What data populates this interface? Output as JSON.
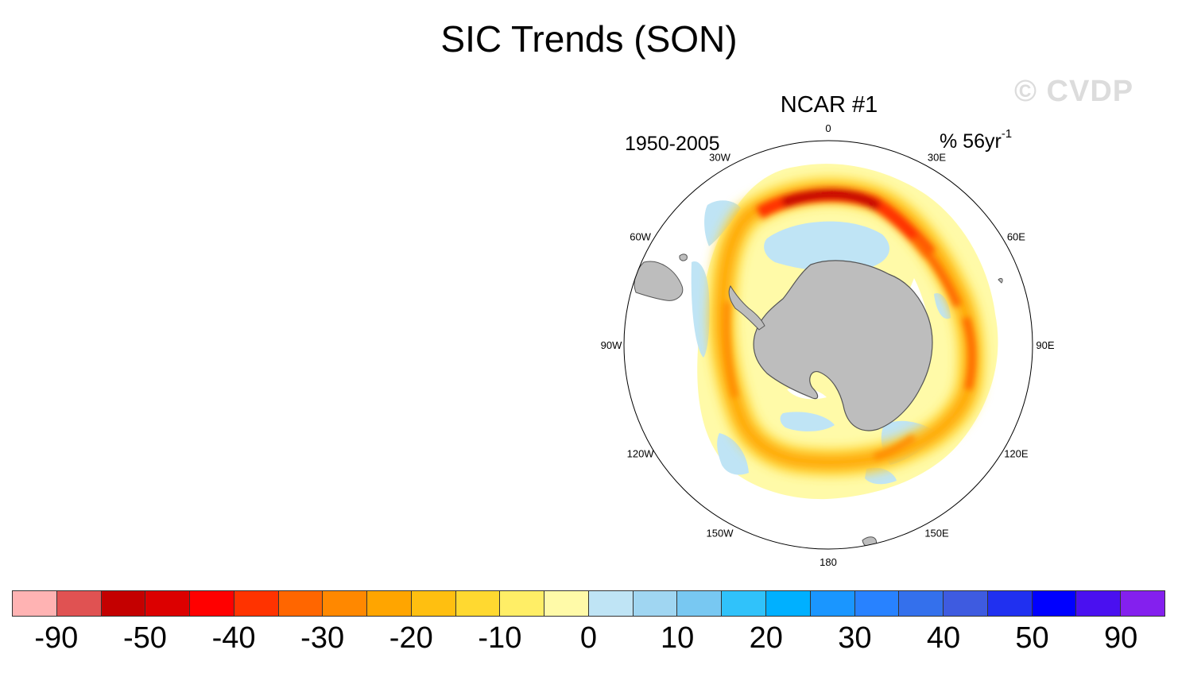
{
  "title": "SIC Trends (SON)",
  "watermark": "© CVDP",
  "panel": {
    "name": "NCAR #1",
    "period": "1950-2005",
    "units_base": "% 56yr",
    "units_exp": "-1"
  },
  "longitude_labels": [
    "0",
    "30E",
    "60E",
    "90E",
    "120E",
    "150E",
    "180",
    "150W",
    "120W",
    "90W",
    "60W",
    "30W"
  ],
  "colorbar": {
    "colors": [
      "#ffb3b3",
      "#e05252",
      "#c40000",
      "#dc0000",
      "#ff0000",
      "#ff3300",
      "#ff6600",
      "#ff8800",
      "#ffa500",
      "#ffbf10",
      "#ffd930",
      "#ffee66",
      "#fffaa8",
      "#bfe4f5",
      "#a0d6f2",
      "#78c8f2",
      "#30c2fa",
      "#00b0ff",
      "#1a96ff",
      "#2882ff",
      "#3470ec",
      "#3e5be0",
      "#2030f0",
      "#0000ff",
      "#4a10f0",
      "#8420ee"
    ],
    "labels": [
      "-90",
      "-50",
      "-40",
      "-30",
      "-20",
      "-10",
      "0",
      "10",
      "20",
      "30",
      "40",
      "50",
      "90"
    ]
  },
  "palette": {
    "land": "#bdbdbd",
    "coast": "#555555"
  }
}
